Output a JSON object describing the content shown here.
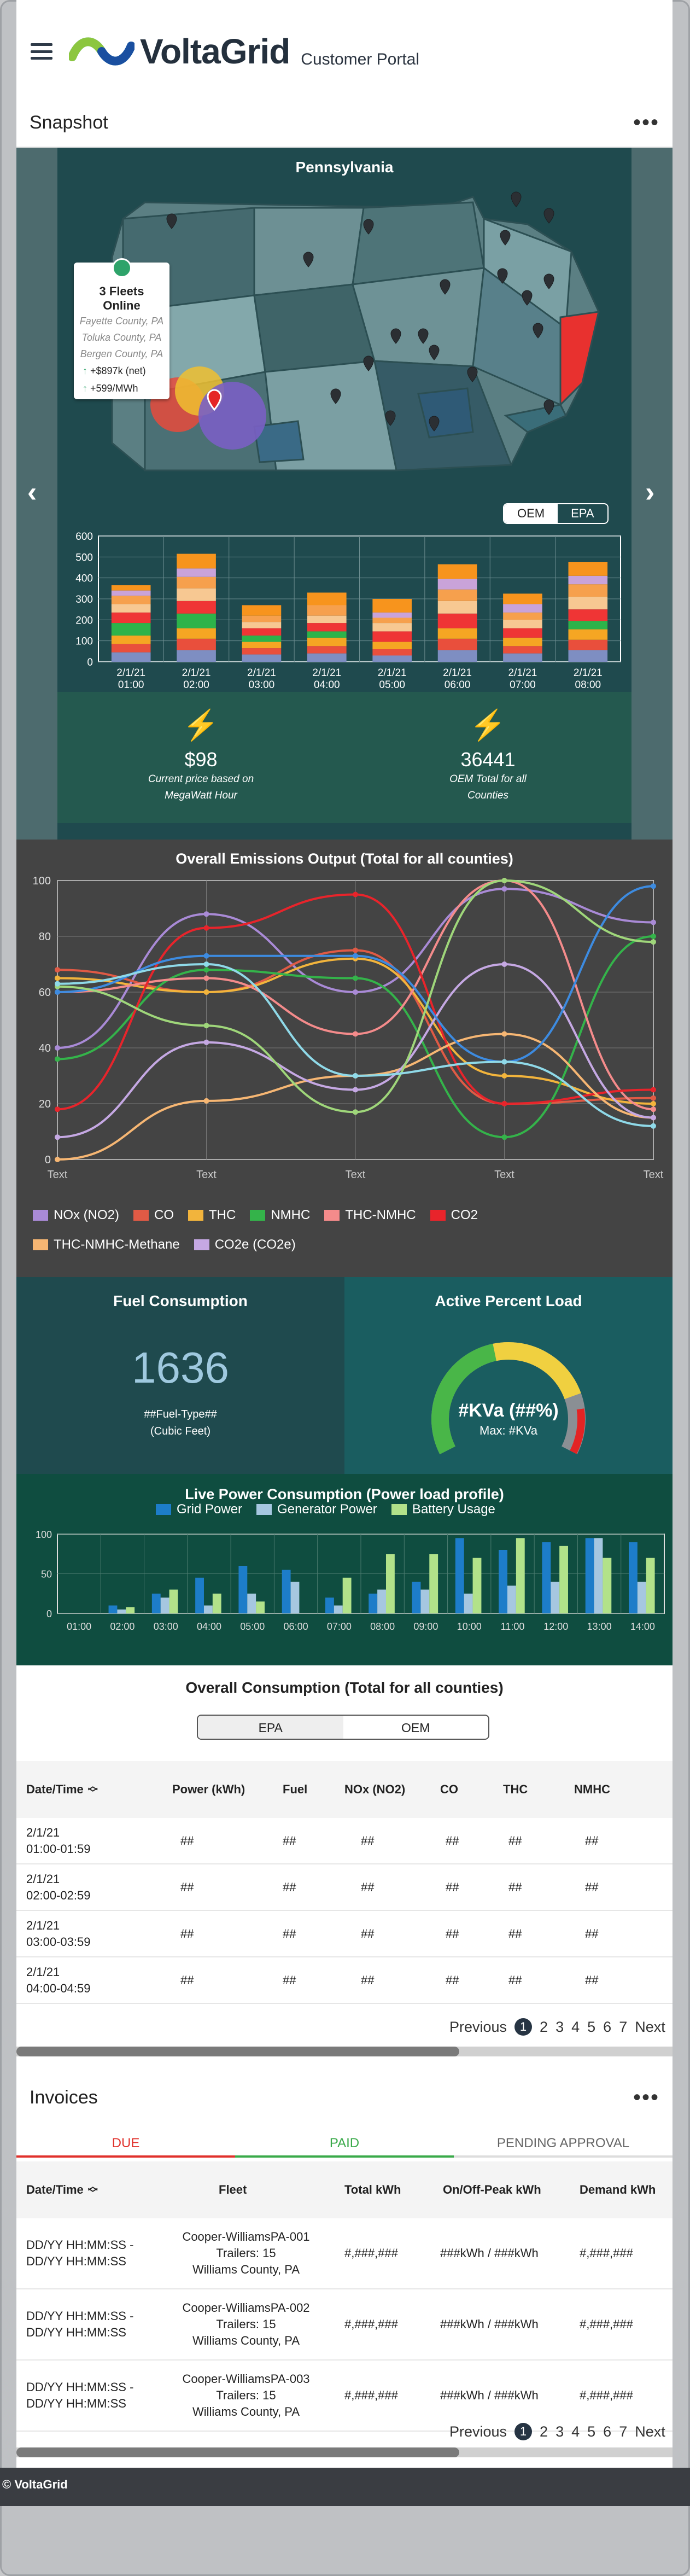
{
  "header": {
    "brand": "VoltaGrid",
    "portal": "Customer Portal"
  },
  "snapshot": {
    "title": "Snapshot",
    "menu": "•••",
    "map_title": "Pennsylvania",
    "fleet": {
      "title": "3 Fleets Online",
      "counties": [
        "Fayette County, PA",
        "Toluka County, PA",
        "Bergen County, PA"
      ],
      "metric1": "+$897k (net)",
      "metric2": "+599/MWh"
    },
    "toggle": [
      "OEM",
      "EPA"
    ],
    "bar_chart": {
      "type": "bar",
      "categories": [
        "2/1/21 01:00",
        "2/1/21 02:00",
        "2/1/21 03:00",
        "2/1/21 04:00",
        "2/1/21 05:00",
        "2/1/21 06:00",
        "2/1/21 07:00",
        "2/1/21 08:00"
      ],
      "cat_lines": [
        [
          "2/1/21",
          "01:00"
        ],
        [
          "2/1/21",
          "02:00"
        ],
        [
          "2/1/21",
          "03:00"
        ],
        [
          "2/1/21",
          "04:00"
        ],
        [
          "2/1/21",
          "05:00"
        ],
        [
          "2/1/21",
          "06:00"
        ],
        [
          "2/1/21",
          "07:00"
        ],
        [
          "2/1/21",
          "08:00"
        ]
      ],
      "yticks": [
        "600",
        "500",
        "400",
        "300",
        "200",
        "100",
        "0"
      ],
      "ylim": [
        0,
        600
      ],
      "stack_colors": [
        "#7e8ec2",
        "#e94f3c",
        "#f5a623",
        "#2db34a",
        "#ef3535",
        "#f7c892",
        "#f6a04d",
        "#c9a3d9",
        "#f7941d"
      ],
      "stacks": [
        [
          45,
          40,
          40,
          60,
          50,
          40,
          40,
          25,
          25
        ],
        [
          55,
          55,
          50,
          70,
          60,
          60,
          55,
          40,
          70
        ],
        [
          35,
          30,
          30,
          30,
          35,
          30,
          30,
          0,
          50
        ],
        [
          40,
          35,
          40,
          30,
          40,
          35,
          50,
          0,
          60
        ],
        [
          30,
          30,
          35,
          0,
          50,
          40,
          25,
          25,
          65
        ],
        [
          55,
          55,
          50,
          0,
          70,
          60,
          55,
          50,
          70
        ],
        [
          40,
          35,
          40,
          0,
          45,
          40,
          35,
          40,
          50
        ],
        [
          55,
          50,
          50,
          40,
          55,
          60,
          60,
          40,
          65
        ]
      ]
    },
    "stats": [
      {
        "value": "$98",
        "label": "Current price based on MegaWatt Hour"
      },
      {
        "value": "36441",
        "label": "OEM Total for all Counties"
      }
    ]
  },
  "emissions": {
    "title": "Overall Emissions Output (Total for all counties)",
    "chart_data": {
      "type": "line",
      "x": [
        "Text",
        "Text",
        "Text",
        "Text",
        "Text"
      ],
      "yticks": [
        "100",
        "80",
        "60",
        "40",
        "20",
        "0"
      ],
      "ylim": [
        0,
        100
      ],
      "series": [
        {
          "name": "NOx (NO2)",
          "color": "#a98ad6",
          "values": [
            40,
            88,
            60,
            97,
            85
          ]
        },
        {
          "name": "CO",
          "color": "#e05a45",
          "values": [
            68,
            60,
            75,
            20,
            22
          ]
        },
        {
          "name": "THC",
          "color": "#f2b43c",
          "values": [
            65,
            60,
            72,
            30,
            20
          ]
        },
        {
          "name": "NMHC",
          "color": "#34b34a",
          "values": [
            36,
            68,
            65,
            8,
            80
          ]
        },
        {
          "name": "THC-NMHC",
          "color": "#f48b8b",
          "values": [
            60,
            65,
            45,
            100,
            18
          ]
        },
        {
          "name": "CO2",
          "color": "#e8242b",
          "values": [
            18,
            83,
            95,
            20,
            25
          ]
        },
        {
          "name": "THC-NMHC-Methane",
          "color": "#f6b673",
          "values": [
            0,
            21,
            30,
            45,
            15
          ]
        },
        {
          "name": "CO2e (CO2e)",
          "color": "#c5a8e3",
          "values": [
            8,
            42,
            25,
            70,
            15
          ]
        },
        {
          "name": "",
          "color": "#3d8be0",
          "values": [
            60,
            73,
            73,
            35,
            98
          ]
        },
        {
          "name": "",
          "color": "#9fd67a",
          "values": [
            62,
            48,
            17,
            100,
            78
          ]
        },
        {
          "name": "",
          "color": "#8fd9e8",
          "values": [
            63,
            70,
            30,
            35,
            12
          ]
        }
      ]
    }
  },
  "fuel": {
    "title": "Fuel Consumption",
    "value": "1636",
    "type": "##Fuel-Type##",
    "unit": "(Cubic Feet)"
  },
  "load": {
    "title": "Active Percent Load",
    "value": "#KVa (##%)",
    "max": "Max: #KVa",
    "fraction": 0.8
  },
  "live": {
    "title": "Live Power Consumption (Power load profile)",
    "chart_data": {
      "type": "bar",
      "categories": [
        "01:00",
        "02:00",
        "03:00",
        "04:00",
        "05:00",
        "06:00",
        "07:00",
        "08:00",
        "09:00",
        "10:00",
        "11:00",
        "12:00",
        "13:00",
        "14:00"
      ],
      "yticks": [
        "100",
        "50",
        "0"
      ],
      "ylim": [
        0,
        100
      ],
      "series": [
        {
          "name": "Grid Power",
          "color": "#1d7dc9",
          "values": [
            0,
            10,
            25,
            45,
            60,
            55,
            20,
            25,
            40,
            95,
            80,
            90,
            95,
            90
          ]
        },
        {
          "name": "Generator Power",
          "color": "#a6c7e0",
          "values": [
            0,
            5,
            20,
            10,
            25,
            40,
            10,
            30,
            30,
            25,
            35,
            40,
            95,
            40
          ]
        },
        {
          "name": "Battery Usage",
          "color": "#b2e28a",
          "values": [
            0,
            8,
            30,
            25,
            15,
            0,
            45,
            75,
            75,
            70,
            95,
            85,
            70,
            70
          ]
        }
      ]
    }
  },
  "consumption": {
    "title": "Overall Consumption (Total for all counties)",
    "toggle": [
      "EPA",
      "OEM"
    ],
    "columns": [
      "Date/Time",
      "Power (kWh)",
      "Fuel",
      "NOx (NO2)",
      "CO",
      "THC",
      "NMHC"
    ],
    "rows": [
      {
        "d1": "2/1/21",
        "d2": "01:00-01:59",
        "v": [
          "##",
          "##",
          "##",
          "##",
          "##",
          "##"
        ]
      },
      {
        "d1": "2/1/21",
        "d2": "02:00-02:59",
        "v": [
          "##",
          "##",
          "##",
          "##",
          "##",
          "##"
        ]
      },
      {
        "d1": "2/1/21",
        "d2": "03:00-03:59",
        "v": [
          "##",
          "##",
          "##",
          "##",
          "##",
          "##"
        ]
      },
      {
        "d1": "2/1/21",
        "d2": "04:00-04:59",
        "v": [
          "##",
          "##",
          "##",
          "##",
          "##",
          "##"
        ]
      }
    ],
    "pager": {
      "prev": "Previous",
      "pages": [
        "1",
        "2",
        "3",
        "4",
        "5",
        "6",
        "7"
      ],
      "next": "Next"
    }
  },
  "invoices": {
    "title": "Invoices",
    "menu": "•••",
    "tabs": [
      {
        "label": "DUE",
        "color": "#e0312b"
      },
      {
        "label": "PAID",
        "color": "#3aaa4a"
      },
      {
        "label": "PENDING APPROVAL",
        "color": "#666666"
      }
    ],
    "columns": [
      "Date/Time",
      "Fleet",
      "Total kWh",
      "On/Off-Peak kWh",
      "Demand  kWh"
    ],
    "rows": [
      {
        "d1": "DD/YY HH:MM:SS -",
        "d2": "DD/YY HH:MM:SS",
        "f1": "Cooper-WilliamsPA-001",
        "f2": "Trailers: 15",
        "f3": "Williams County, PA",
        "total": "#,###,###",
        "peak": "###kWh  / ###kWh",
        "demand": "#,###,###"
      },
      {
        "d1": "DD/YY HH:MM:SS -",
        "d2": "DD/YY HH:MM:SS",
        "f1": "Cooper-WilliamsPA-002",
        "f2": "Trailers: 15",
        "f3": "Williams County, PA",
        "total": "#,###,###",
        "peak": "###kWh  / ###kWh",
        "demand": "#,###,###"
      },
      {
        "d1": "DD/YY HH:MM:SS -",
        "d2": "DD/YY HH:MM:SS",
        "f1": "Cooper-WilliamsPA-003",
        "f2": "Trailers: 15",
        "f3": "Williams County, PA",
        "total": "#,###,###",
        "peak": "###kWh  / ###kWh",
        "demand": "#,###,###"
      }
    ],
    "pager": {
      "prev": "Previous",
      "pages": [
        "1",
        "2",
        "3",
        "4",
        "5",
        "6",
        "7"
      ],
      "next": "Next"
    }
  },
  "footer": {
    "copyright": "© VoltaGrid"
  }
}
